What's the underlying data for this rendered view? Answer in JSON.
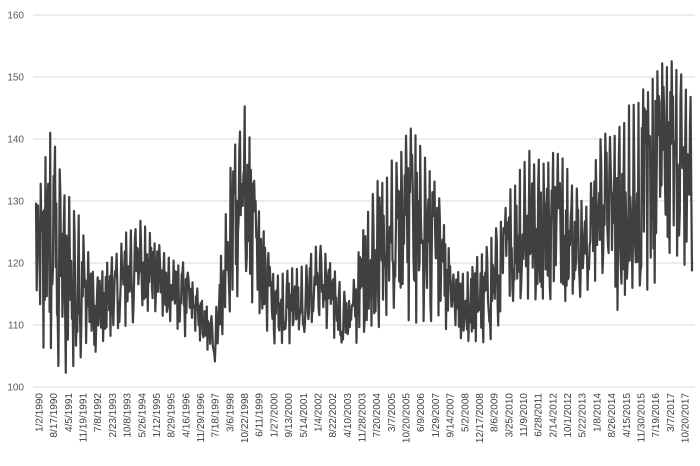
{
  "chart_data": {
    "type": "line",
    "title": "",
    "xlabel": "",
    "ylabel": "",
    "ylim": [
      100,
      160
    ],
    "yticks": [
      100,
      110,
      120,
      130,
      140,
      150,
      160
    ],
    "grid": "horizontal",
    "legend": "none",
    "line_color": "#404040",
    "grid_color": "#d9d9d9",
    "xtick_labels": [
      "1/2/1990",
      "8/17/1990",
      "4/5/1991",
      "11/19/1991",
      "7/8/1992",
      "2/23/1993",
      "10/8/1993",
      "5/26/1994",
      "1/12/1995",
      "8/29/1995",
      "4/16/1996",
      "11/29/1996",
      "7/18/1997",
      "3/6/1998",
      "10/22/1998",
      "6/11/1999",
      "1/27/2000",
      "9/13/2000",
      "5/14/2001",
      "1/4/2002",
      "8/22/2002",
      "4/10/2003",
      "11/28/2003",
      "7/20/2004",
      "3/7/2005",
      "10/20/2005",
      "6/9/2006",
      "1/29/2007",
      "9/14/2007",
      "5/2/2008",
      "12/17/2008",
      "8/6/2009",
      "3/25/2010",
      "11/9/2010",
      "6/28/2011",
      "2/14/2012",
      "10/1/2012",
      "5/22/2013",
      "1/8/2014",
      "8/26/2014",
      "4/15/2015",
      "11/30/2015",
      "7/19/2016",
      "3/7/2017",
      "10/20/2017"
    ],
    "series": [
      {
        "name": "",
        "x": [
          "1/2/1990",
          "8/17/1990",
          "4/5/1991",
          "11/19/1991",
          "7/8/1992",
          "2/23/1993",
          "10/8/1993",
          "5/26/1994",
          "1/12/1995",
          "8/29/1995",
          "4/16/1996",
          "11/29/1996",
          "7/18/1997",
          "3/6/1998",
          "10/22/1998",
          "6/11/1999",
          "1/27/2000",
          "9/13/2000",
          "5/14/2001",
          "1/4/2002",
          "8/22/2002",
          "4/10/2003",
          "11/28/2003",
          "7/20/2004",
          "3/7/2005",
          "10/20/2005",
          "6/9/2006",
          "1/29/2007",
          "9/14/2007",
          "5/2/2008",
          "12/17/2008",
          "8/6/2009",
          "3/25/2010",
          "11/9/2010",
          "6/28/2011",
          "2/14/2012",
          "10/1/2012",
          "5/22/2013",
          "1/8/2014",
          "8/26/2014",
          "4/15/2015",
          "11/30/2015",
          "7/19/2016",
          "3/7/2017",
          "10/20/2017"
        ],
        "low": [
          107,
          104,
          101,
          104,
          105,
          108,
          109,
          111,
          112,
          110,
          108,
          107,
          104,
          111,
          114,
          111,
          107,
          107,
          108,
          111,
          107,
          106,
          108,
          109,
          111,
          109,
          110,
          110,
          107,
          107,
          106,
          109,
          113,
          113,
          113,
          113,
          114,
          115,
          118,
          111,
          114,
          114,
          118,
          120,
          117
        ],
        "high": [
          131,
          143,
          132,
          127,
          118,
          121,
          125,
          127,
          124,
          121,
          120,
          115,
          111,
          136,
          146,
          128,
          118,
          119,
          120,
          124,
          119,
          114,
          127,
          134,
          137,
          142,
          140,
          131,
          119,
          119,
          123,
          127,
          133,
          139,
          136,
          139,
          133,
          130,
          143,
          142,
          147,
          150,
          154,
          152,
          148
        ]
      }
    ]
  }
}
